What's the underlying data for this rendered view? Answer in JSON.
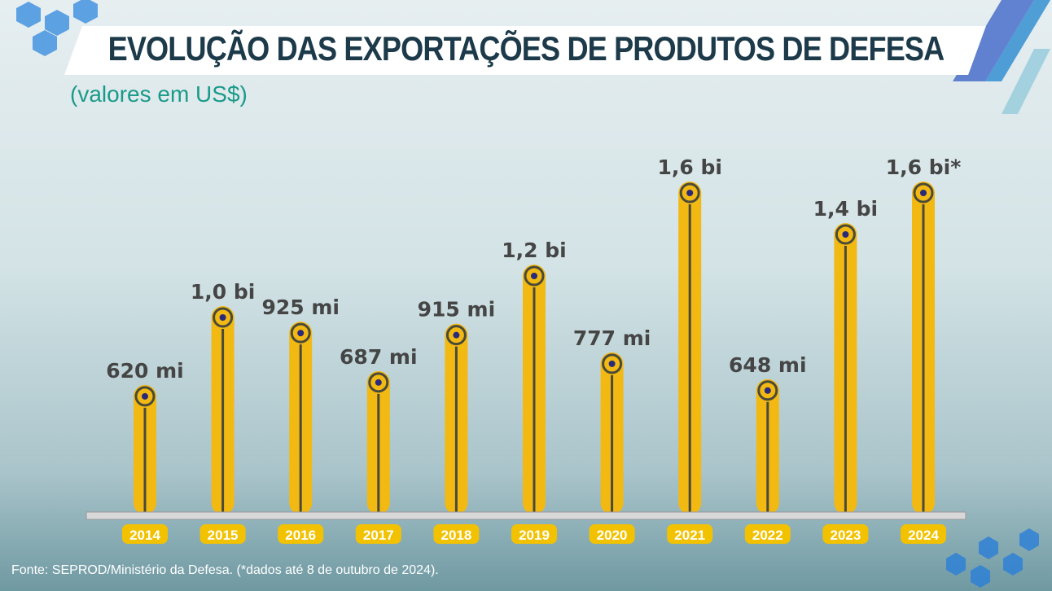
{
  "title": "EVOLUÇÃO DAS EXPORTAÇÕES DE PRODUTOS DE DEFESA",
  "subtitle": "(valores em US$)",
  "source": "Fonte: SEPROD/Ministério da Defesa. (*dados até 8 de outubro de 2024).",
  "colors": {
    "bar": "#f2b913",
    "label": "#454545",
    "year_badge": "#f2c200",
    "title": "#1c3a4a",
    "subtitle": "#1a9a8a",
    "dot": "#2a2a7a"
  },
  "chart_data": {
    "type": "bar",
    "title": "EVOLUÇÃO DAS EXPORTAÇÕES DE PRODUTOS DE DEFESA",
    "subtitle": "(valores em US$)",
    "categories": [
      "2014",
      "2015",
      "2016",
      "2017",
      "2018",
      "2019",
      "2020",
      "2021",
      "2022",
      "2023",
      "2024"
    ],
    "values": [
      620000000,
      1000000000,
      925000000,
      687000000,
      915000000,
      1200000000,
      777000000,
      1600000000,
      648000000,
      1400000000,
      1600000000
    ],
    "data_labels": [
      "620 mi",
      "1,0 bi",
      "925 mi",
      "687 mi",
      "915 mi",
      "1,2 bi",
      "777 mi",
      "1,6 bi",
      "648 mi",
      "1,4 bi",
      "1,6 bi*"
    ],
    "unit": "US$",
    "grid": false,
    "legend": "none"
  }
}
